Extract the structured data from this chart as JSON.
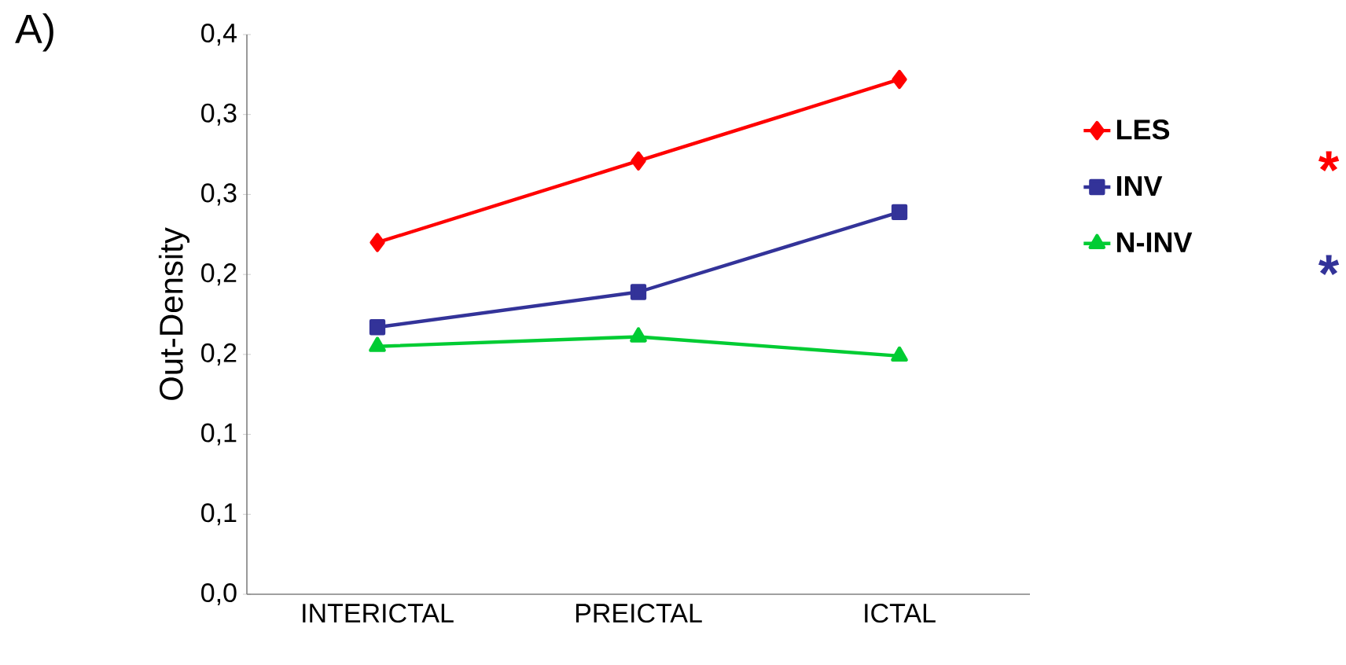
{
  "chart_data": {
    "type": "line",
    "ylabel": "Out-Density",
    "categories": [
      "INTERICTAL",
      "PREICTAL",
      "ICTAL"
    ],
    "series": [
      {
        "name": "LES",
        "color": "#ff0000",
        "marker": "diamond",
        "values": [
          0.22,
          0.271,
          0.322
        ]
      },
      {
        "name": "INV",
        "color": "#333399",
        "marker": "square",
        "values": [
          0.167,
          0.189,
          0.239
        ]
      },
      {
        "name": "N-INV",
        "color": "#00cc33",
        "marker": "triangle",
        "values": [
          0.155,
          0.161,
          0.149
        ]
      }
    ],
    "ylim": [
      0,
      0.35
    ],
    "yticks": [
      {
        "value": 0,
        "label": "0,0"
      },
      {
        "value": 0.05,
        "label": "0,1"
      },
      {
        "value": 0.1,
        "label": "0,1"
      },
      {
        "value": 0.15,
        "label": "0,2"
      },
      {
        "value": 0.2,
        "label": "0,2"
      },
      {
        "value": 0.25,
        "label": "0,3"
      },
      {
        "value": 0.3,
        "label": "0,3"
      },
      {
        "value": 0.35,
        "label": "0,4"
      }
    ],
    "legend": "right",
    "grid": false,
    "annotations": [
      "A)",
      "*",
      "*"
    ]
  }
}
